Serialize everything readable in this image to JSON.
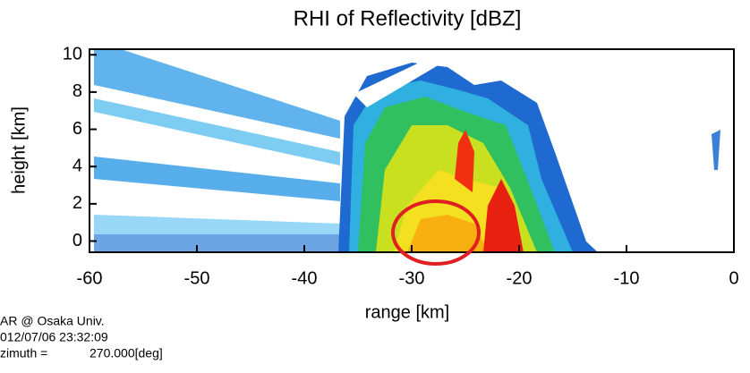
{
  "chart_data": {
    "type": "rhi",
    "title": "RHI of Reflectivity [dBZ]",
    "x_label": "range [km]",
    "y_label": "height [km]",
    "xlim": [
      -60,
      0
    ],
    "xticks": [
      -60,
      -50,
      -40,
      -30,
      -20,
      -10,
      0
    ],
    "ylim": [
      -0.6,
      10.3
    ],
    "yticks": [
      0,
      2,
      4,
      6,
      8,
      10
    ],
    "annotations": [
      "AR @ Osaka Univ.",
      "012/07/06 23:32:09",
      "zimuth =",
      "270.000[deg]"
    ]
  }
}
